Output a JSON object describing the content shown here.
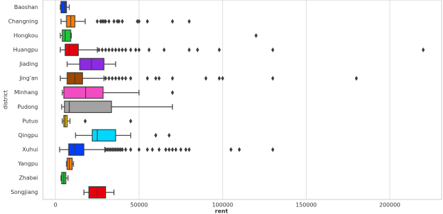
{
  "chart_data": {
    "type": "box",
    "xlabel": "rent",
    "ylabel": "district",
    "categories": [
      "Baoshan",
      "Changning",
      "Hongkou",
      "Huangpu",
      "Jiading",
      "Jing'an",
      "Minhang",
      "Pudong",
      "Putuo",
      "Qingpu",
      "Xuhui",
      "Yangpu",
      "Zhabei",
      "Songjiang"
    ],
    "colors": [
      "#023eff",
      "#ff7c00",
      "#1ac938",
      "#e8000b",
      "#8b2be2",
      "#9f4800",
      "#f14cc1",
      "#a3a3a3",
      "#ffc400",
      "#00d7ff",
      "#023eff",
      "#ff7c00",
      "#1ac938",
      "#e8000b"
    ],
    "boxes": [
      {
        "whislo": 2900,
        "q1": 3300,
        "median": 5400,
        "q3": 6600,
        "whishi": 8300,
        "fliers": []
      },
      {
        "whislo": 3300,
        "q1": 6600,
        "median": 9100,
        "q3": 11600,
        "whishi": 17800,
        "fliers": [
          25000,
          27000,
          28000,
          29000,
          30000,
          32000,
          35000,
          37000,
          38000,
          40000,
          49000,
          50000,
          55000,
          70000,
          80000
        ]
      },
      {
        "whislo": 2900,
        "q1": 4100,
        "median": 5800,
        "q3": 9100,
        "whishi": 9500,
        "fliers": [
          120000
        ]
      },
      {
        "whislo": 2900,
        "q1": 5800,
        "median": 8300,
        "q3": 13700,
        "whishi": 25000,
        "fliers": [
          26000,
          28000,
          30000,
          32000,
          34000,
          36000,
          38000,
          40000,
          42000,
          45000,
          48000,
          50000,
          56000,
          65000,
          80000,
          85000,
          98000,
          130000,
          220000
        ]
      },
      {
        "whislo": 7000,
        "q1": 14500,
        "median": 21500,
        "q3": 29000,
        "whishi": 36000,
        "fliers": []
      },
      {
        "whislo": 2900,
        "q1": 7000,
        "median": 11600,
        "q3": 16200,
        "whishi": 29000,
        "fliers": [
          30000,
          32000,
          34000,
          36000,
          38000,
          40000,
          42000,
          45000,
          55000,
          60000,
          62000,
          70000,
          90000,
          98000,
          100000,
          130000,
          180000
        ]
      },
      {
        "whislo": 4100,
        "q1": 5000,
        "median": 18000,
        "q3": 28500,
        "whishi": 50000,
        "fliers": [
          70000
        ]
      },
      {
        "whislo": 3700,
        "q1": 5400,
        "median": 8300,
        "q3": 33500,
        "whishi": 70000,
        "fliers": []
      },
      {
        "whislo": 4100,
        "q1": 5000,
        "median": 5800,
        "q3": 7000,
        "whishi": 8700,
        "fliers": [
          17800,
          45000
        ]
      },
      {
        "whislo": 12000,
        "q1": 22000,
        "median": 25000,
        "q3": 36000,
        "whishi": 45000,
        "fliers": [
          60000,
          68000
        ]
      },
      {
        "whislo": 2500,
        "q1": 7900,
        "median": 11600,
        "q3": 17000,
        "whishi": 29500,
        "fliers": [
          30000,
          31000,
          32000,
          33000,
          34000,
          35000,
          36000,
          37000,
          38000,
          39000,
          40000,
          42000,
          45000,
          50000,
          55000,
          58000,
          62000,
          66000,
          68000,
          70000,
          72000,
          75000,
          78000,
          80000,
          105000,
          110000,
          130000
        ]
      },
      {
        "whislo": 6600,
        "q1": 7000,
        "median": 8300,
        "q3": 10000,
        "whishi": 10800,
        "fliers": []
      },
      {
        "whislo": 3300,
        "q1": 3700,
        "median": 5000,
        "q3": 6200,
        "whishi": 7500,
        "fliers": []
      },
      {
        "whislo": 17000,
        "q1": 20000,
        "median": 25000,
        "q3": 30000,
        "whishi": 35000,
        "fliers": []
      }
    ],
    "xlim": [
      -7500,
      231000
    ],
    "xticks": [
      0,
      50000,
      100000,
      150000,
      200000
    ],
    "grid": true
  }
}
